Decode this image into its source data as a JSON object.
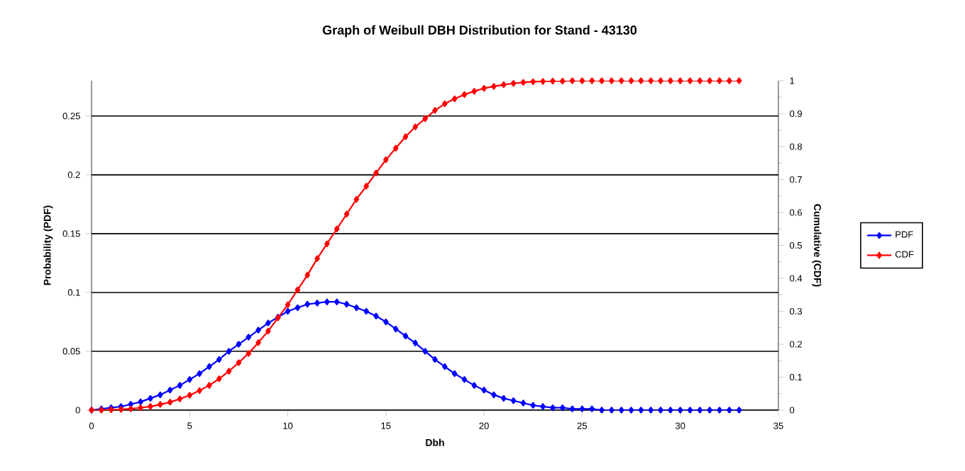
{
  "chart_data": {
    "type": "line",
    "title": "Graph of Weibull DBH Distribution for Stand - 43130",
    "xlabel": "Dbh",
    "ylabel": "Probability (PDF)",
    "y2label": "Cumulative (CDF)",
    "x": [
      0,
      0.5,
      1,
      1.5,
      2,
      2.5,
      3,
      3.5,
      4,
      4.5,
      5,
      5.5,
      6,
      6.5,
      7,
      7.5,
      8,
      8.5,
      9,
      9.5,
      10,
      10.5,
      11,
      11.5,
      12,
      12.5,
      13,
      13.5,
      14,
      14.5,
      15,
      15.5,
      16,
      16.5,
      17,
      17.5,
      18,
      18.5,
      19,
      19.5,
      20,
      20.5,
      21,
      21.5,
      22,
      22.5,
      23,
      23.5,
      24,
      24.5,
      25,
      25.5,
      26,
      26.5,
      27,
      27.5,
      28,
      28.5,
      29,
      29.5,
      30,
      30.5,
      31,
      31.5,
      32,
      32.5,
      33
    ],
    "series": [
      {
        "name": "PDF",
        "color": "#0000ff",
        "values": [
          0,
          0.001,
          0.002,
          0.003,
          0.005,
          0.007,
          0.01,
          0.013,
          0.017,
          0.021,
          0.026,
          0.031,
          0.037,
          0.043,
          0.05,
          0.056,
          0.062,
          0.068,
          0.074,
          0.079,
          0.084,
          0.087,
          0.09,
          0.091,
          0.092,
          0.092,
          0.09,
          0.087,
          0.084,
          0.08,
          0.075,
          0.069,
          0.063,
          0.057,
          0.05,
          0.043,
          0.037,
          0.031,
          0.026,
          0.021,
          0.017,
          0.013,
          0.01,
          0.008,
          0.006,
          0.004,
          0.003,
          0.002,
          0.002,
          0.001,
          0.001,
          0.001,
          0,
          0,
          0,
          0,
          0,
          0,
          0,
          0,
          0,
          0,
          0,
          0,
          0,
          0,
          0
        ]
      },
      {
        "name": "CDF",
        "color": "#ff0000",
        "axis": "y2",
        "values": [
          0,
          0,
          0.001,
          0.002,
          0.004,
          0.007,
          0.011,
          0.017,
          0.024,
          0.034,
          0.045,
          0.059,
          0.075,
          0.095,
          0.118,
          0.144,
          0.172,
          0.205,
          0.24,
          0.28,
          0.32,
          0.365,
          0.41,
          0.46,
          0.505,
          0.55,
          0.595,
          0.64,
          0.68,
          0.72,
          0.76,
          0.795,
          0.83,
          0.86,
          0.885,
          0.91,
          0.93,
          0.945,
          0.958,
          0.968,
          0.977,
          0.983,
          0.988,
          0.992,
          0.995,
          0.997,
          0.998,
          0.999,
          0.999,
          1,
          1,
          1,
          1,
          1,
          1,
          1,
          1,
          1,
          1,
          1,
          1,
          1,
          1,
          1,
          1,
          1,
          1
        ]
      }
    ],
    "xlim": [
      0,
      35
    ],
    "xticks": [
      0,
      5,
      10,
      15,
      20,
      25,
      30,
      35
    ],
    "ylim": [
      0,
      0.28
    ],
    "yticks": [
      0,
      0.05,
      0.1,
      0.15,
      0.2,
      0.25
    ],
    "y2lim": [
      0,
      1
    ],
    "y2ticks": [
      0,
      0.1,
      0.2,
      0.3,
      0.4,
      0.5,
      0.6,
      0.7,
      0.8,
      0.9,
      1
    ],
    "grid": "y",
    "legend": "right",
    "marker": "diamond",
    "line_style": "solid"
  }
}
